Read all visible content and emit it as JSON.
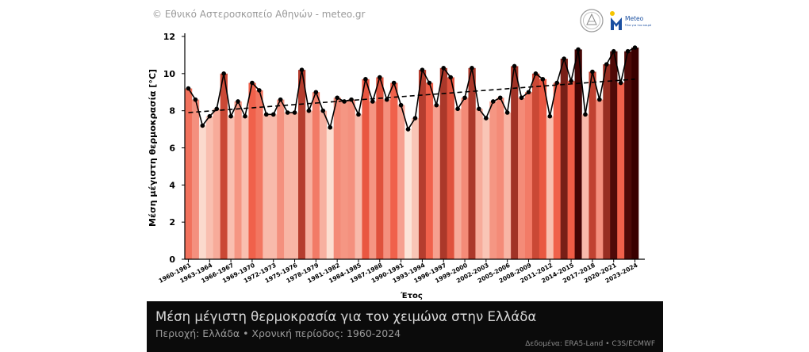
{
  "header": {
    "copyright": "© Εθνικό Αστεροσκοπείο Αθηνών - meteo.gr",
    "logo_text": "Meteo",
    "logo_subtext": "Όλα για τον καιρό"
  },
  "footer": {
    "title": "Μέση μέγιστη θερμοκρασία για τον χειμώνα στην Ελλάδα",
    "subtitle": "Περιοχή: Ελλάδα • Χρονική περίοδος: 1960-2024",
    "source": "Δεδομένα: ERA5-Land • C3S/ECMWF"
  },
  "colors": {
    "line": "#000000",
    "trend": "#000000",
    "scale_low": "#fce4d8",
    "scale_mid": "#ef5a43",
    "scale_high": "#3a0000"
  },
  "chart_data": {
    "type": "bar",
    "xlabel": "Έτος",
    "ylabel": "Μέση μέγιστη θερμοκρασία [°C]",
    "ylim": [
      0,
      12
    ],
    "yticks": [
      0,
      2,
      4,
      6,
      8,
      10,
      12
    ],
    "grid": false,
    "categories": [
      "1960-1961",
      "1961-1962",
      "1962-1963",
      "1963-1964",
      "1964-1965",
      "1965-1966",
      "1966-1967",
      "1967-1968",
      "1968-1969",
      "1969-1970",
      "1970-1971",
      "1971-1972",
      "1972-1973",
      "1973-1974",
      "1974-1975",
      "1975-1976",
      "1976-1977",
      "1977-1978",
      "1978-1979",
      "1979-1980",
      "1980-1981",
      "1981-1982",
      "1982-1983",
      "1983-1984",
      "1984-1985",
      "1985-1986",
      "1986-1987",
      "1987-1988",
      "1988-1989",
      "1989-1990",
      "1990-1991",
      "1991-1992",
      "1992-1993",
      "1993-1994",
      "1994-1995",
      "1995-1996",
      "1996-1997",
      "1997-1998",
      "1998-1999",
      "1999-2000",
      "2000-2001",
      "2001-2002",
      "2002-2003",
      "2003-2004",
      "2004-2005",
      "2005-2006",
      "2006-2007",
      "2007-2008",
      "2008-2009",
      "2009-2010",
      "2010-2011",
      "2011-2012",
      "2012-2013",
      "2013-2014",
      "2014-2015",
      "2015-2016",
      "2016-2017",
      "2017-2018",
      "2018-2019",
      "2019-2020",
      "2020-2021",
      "2021-2022",
      "2022-2023",
      "2023-2024"
    ],
    "tick_labels": [
      "1960-1961",
      "1963-1964",
      "1966-1967",
      "1969-1970",
      "1972-1973",
      "1975-1976",
      "1978-1979",
      "1981-1982",
      "1984-1985",
      "1987-1988",
      "1990-1991",
      "1993-1994",
      "1996-1997",
      "1999-2000",
      "2002-2003",
      "2005-2006",
      "2008-2009",
      "2011-2012",
      "2014-2015",
      "2017-2018",
      "2020-2021",
      "2023-2024"
    ],
    "values": [
      9.2,
      8.6,
      7.2,
      7.7,
      8.1,
      10.0,
      7.7,
      8.5,
      7.7,
      9.5,
      9.1,
      7.8,
      7.8,
      8.6,
      7.9,
      7.9,
      10.2,
      8.0,
      9.0,
      8.0,
      7.1,
      8.7,
      8.5,
      8.6,
      7.8,
      9.7,
      8.5,
      9.8,
      8.6,
      9.5,
      8.3,
      7.0,
      7.6,
      10.2,
      9.5,
      8.3,
      10.3,
      9.8,
      8.1,
      8.7,
      10.3,
      8.1,
      7.6,
      8.5,
      8.7,
      7.9,
      10.4,
      8.7,
      9.0,
      10.0,
      9.7,
      7.7,
      9.5,
      10.8,
      9.6,
      11.3,
      7.8,
      10.1,
      8.6,
      10.5,
      11.2,
      9.5,
      11.2,
      11.4
    ],
    "trend": {
      "start": 7.9,
      "end": 9.7
    },
    "series": [
      {
        "type": "bar",
        "values_ref": "values"
      },
      {
        "type": "line",
        "values_ref": "values"
      },
      {
        "type": "line-dashed",
        "values_ref": "trend"
      }
    ]
  }
}
